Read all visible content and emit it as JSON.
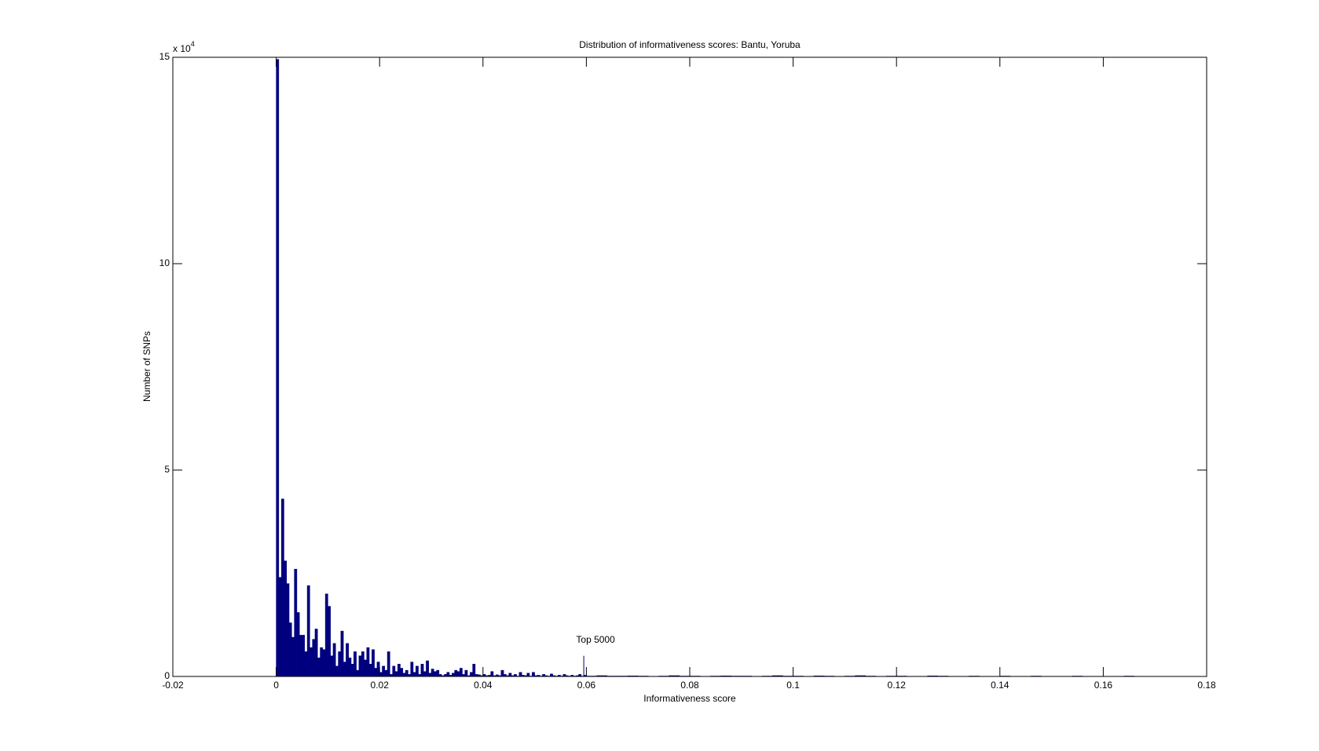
{
  "chart_data": {
    "type": "histogram",
    "title": "Distribution of informativeness scores: Bantu, Yoruba",
    "xlabel": "Informativeness score",
    "ylabel": "Number of SNPs",
    "y_exponent_label": {
      "base": "x 10",
      "exponent": "4"
    },
    "color": "#00007f",
    "xlim": [
      -0.02,
      0.18
    ],
    "xticks": [
      -0.02,
      0,
      0.02,
      0.04,
      0.06,
      0.08,
      0.1,
      0.12,
      0.14,
      0.16,
      0.18
    ],
    "ylim": [
      0,
      15
    ],
    "yticks": [
      0,
      5,
      10,
      15
    ],
    "annotation": {
      "text": "Top 5000",
      "x": 0.0595,
      "y": 0.5
    },
    "bins": [
      0,
      0.0005,
      0.001,
      0.0015,
      0.002,
      0.0025,
      0.003,
      0.0035,
      0.004,
      0.0045,
      0.005,
      0.0055,
      0.006,
      0.0065,
      0.007,
      0.0075,
      0.008,
      0.0085,
      0.009,
      0.0095,
      0.01,
      0.0105,
      0.011,
      0.0115,
      0.012,
      0.0125,
      0.013,
      0.0135,
      0.014,
      0.0145,
      0.015,
      0.0155,
      0.016,
      0.0165,
      0.017,
      0.0175,
      0.018,
      0.0185,
      0.019,
      0.0195,
      0.02,
      0.0205,
      0.021,
      0.0215,
      0.022,
      0.0225,
      0.023,
      0.0235,
      0.024,
      0.0245,
      0.025,
      0.0255,
      0.026,
      0.0265,
      0.027,
      0.0275,
      0.028,
      0.0285,
      0.029,
      0.0295,
      0.03,
      0.0305,
      0.031,
      0.0315,
      0.032,
      0.0325,
      0.033,
      0.0335,
      0.034,
      0.0345,
      0.035,
      0.0355,
      0.036,
      0.0365,
      0.037,
      0.0375,
      0.038,
      0.0385,
      0.039,
      0.0395,
      0.04,
      0.0405,
      0.041,
      0.0415,
      0.042,
      0.0425,
      0.043,
      0.0435,
      0.044,
      0.0445,
      0.045,
      0.0455,
      0.046,
      0.0465,
      0.047,
      0.0475,
      0.048,
      0.0485,
      0.049,
      0.0495,
      0.05,
      0.0505,
      0.051,
      0.0515,
      0.052,
      0.0525,
      0.053,
      0.0535,
      0.054,
      0.0545,
      0.055,
      0.0555,
      0.056,
      0.0565,
      0.057,
      0.0575,
      0.058,
      0.0585,
      0.059,
      0.0595,
      0.06,
      0.062,
      0.064,
      0.066,
      0.068,
      0.07,
      0.072,
      0.074,
      0.076,
      0.078,
      0.08,
      0.082,
      0.084,
      0.086,
      0.088,
      0.09,
      0.092,
      0.094,
      0.096,
      0.098,
      0.1,
      0.102,
      0.104,
      0.106,
      0.108,
      0.11,
      0.112,
      0.114,
      0.116,
      0.118,
      0.12,
      0.122,
      0.124,
      0.126,
      0.128,
      0.13,
      0.132,
      0.134,
      0.136,
      0.138,
      0.14,
      0.142,
      0.144,
      0.146,
      0.148,
      0.15,
      0.152,
      0.154,
      0.156,
      0.158,
      0.16,
      0.162,
      0.164,
      0.166,
      0.168,
      0.17
    ],
    "values": [
      14.95,
      2.4,
      4.3,
      2.8,
      2.25,
      1.3,
      0.95,
      2.6,
      1.55,
      1.0,
      1.0,
      0.6,
      2.2,
      0.7,
      0.9,
      1.15,
      0.45,
      0.7,
      0.65,
      2.0,
      1.7,
      0.5,
      0.8,
      0.25,
      0.6,
      1.1,
      0.35,
      0.8,
      0.45,
      0.3,
      0.6,
      0.15,
      0.5,
      0.6,
      0.4,
      0.7,
      0.3,
      0.65,
      0.2,
      0.35,
      0.1,
      0.25,
      0.15,
      0.6,
      0.05,
      0.25,
      0.12,
      0.3,
      0.2,
      0.08,
      0.15,
      0.05,
      0.35,
      0.1,
      0.25,
      0.05,
      0.3,
      0.12,
      0.38,
      0.08,
      0.18,
      0.12,
      0.15,
      0.05,
      0.02,
      0.05,
      0.1,
      0.03,
      0.08,
      0.15,
      0.12,
      0.2,
      0.05,
      0.15,
      0.02,
      0.1,
      0.3,
      0.05,
      0.04,
      0.02,
      0.05,
      0.02,
      0.03,
      0.12,
      0.02,
      0.04,
      0.02,
      0.15,
      0.05,
      0.02,
      0.08,
      0.02,
      0.05,
      0.01,
      0.1,
      0.03,
      0.02,
      0.08,
      0.01,
      0.1,
      0.02,
      0.03,
      0.01,
      0.05,
      0.02,
      0.01,
      0.06,
      0.02,
      0.01,
      0.03,
      0.01,
      0.05,
      0.02,
      0.01,
      0.03,
      0.01,
      0.02,
      0.05,
      0.01,
      0.03,
      0.01,
      0.02,
      0.01,
      0.01,
      0.015,
      0.01,
      0.005,
      0.01,
      0.02,
      0.01,
      0.01,
      0.005,
      0.01,
      0.015,
      0.01,
      0.01,
      0.005,
      0.01,
      0.02,
      0.01,
      0.01,
      0.005,
      0.015,
      0.01,
      0.005,
      0.01,
      0.02,
      0.01,
      0.005,
      0.01,
      0.01,
      0.005,
      0.005,
      0.015,
      0.01,
      0.005,
      0.005,
      0.01,
      0.005,
      0.005,
      0.01,
      0.005,
      0.005,
      0.01,
      0.005,
      0.005,
      0.005,
      0.01,
      0.005,
      0.005,
      0.005,
      0.005,
      0.01,
      0.005,
      0
    ]
  }
}
